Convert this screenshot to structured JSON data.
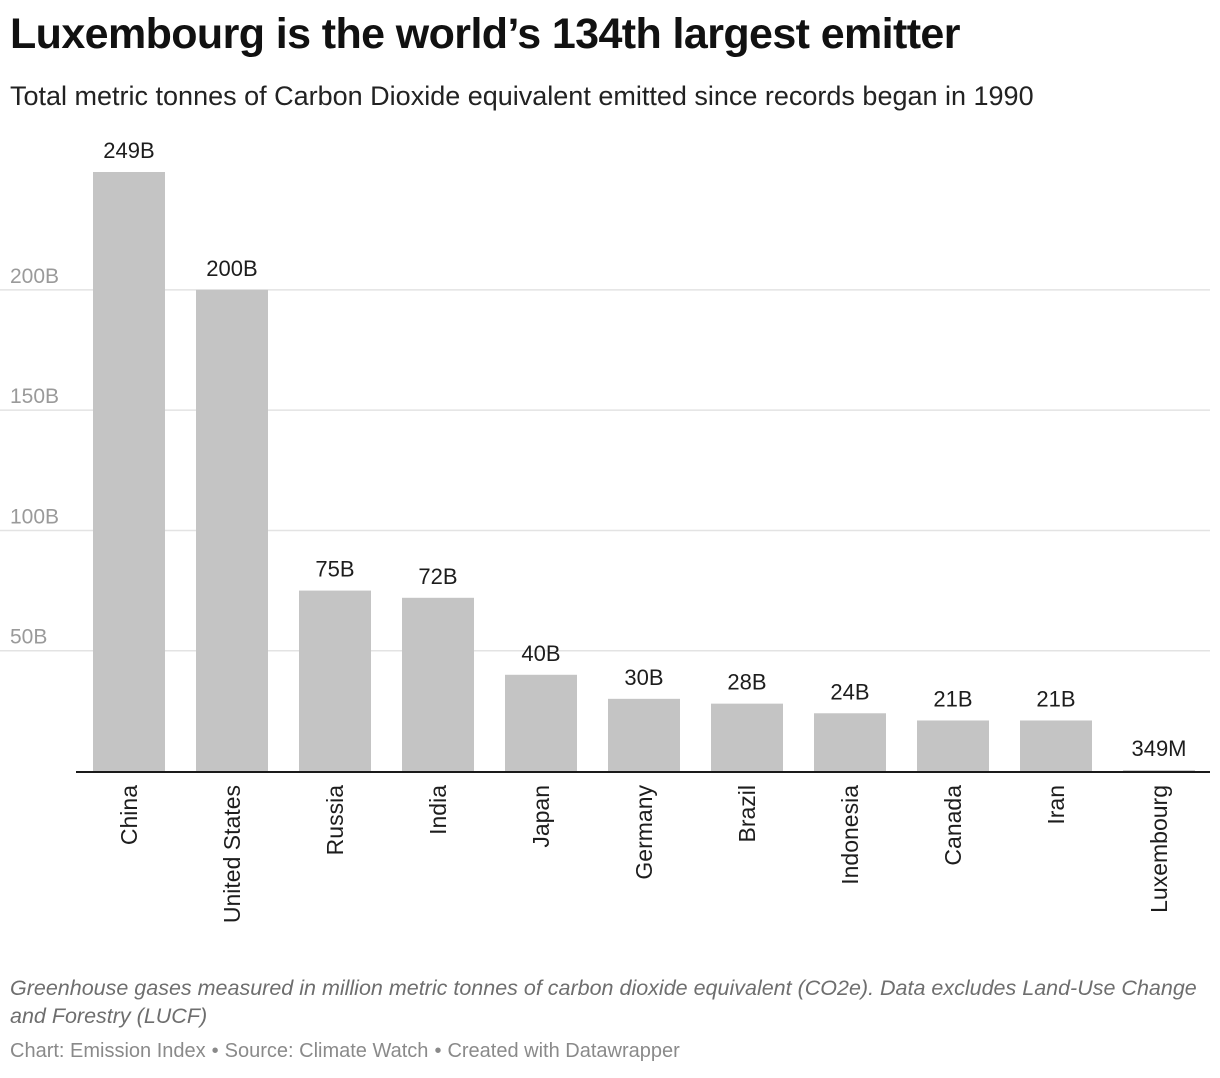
{
  "title": "Luxembourg is the world’s 134th largest emitter",
  "subtitle": "Total metric tonnes of Carbon Dioxide equivalent emitted since records began in 1990",
  "note": "Greenhouse gases measured in million metric tonnes of carbon dioxide equivalent (CO2e). Data excludes Land-Use Change and Forestry (LUCF)",
  "credits": {
    "chart": "Chart: Emission Index",
    "source": "Source: Climate Watch",
    "created": "Created with Datawrapper",
    "separator": "•"
  },
  "colors": {
    "bar": "#c4c4c4",
    "grid": "#e3e3e3",
    "axis": "#1a1a1a",
    "tick_label": "#9a9a9a"
  },
  "chart_data": {
    "type": "bar",
    "categories": [
      "China",
      "United States",
      "Russia",
      "India",
      "Japan",
      "Germany",
      "Brazil",
      "Indonesia",
      "Canada",
      "Iran",
      "Luxembourg"
    ],
    "values": [
      249000,
      200000,
      75000,
      72000,
      40000,
      30000,
      28000,
      24000,
      21000,
      21000,
      349
    ],
    "value_labels": [
      "249B",
      "200B",
      "75B",
      "72B",
      "40B",
      "30B",
      "28B",
      "24B",
      "21B",
      "21B",
      "349M"
    ],
    "y_ticks": [
      50000,
      100000,
      150000,
      200000
    ],
    "y_tick_labels": [
      "50B",
      "100B",
      "150B",
      "200B"
    ],
    "ylim": [
      0,
      249000
    ],
    "grid": true,
    "xlabel": "",
    "ylabel": ""
  }
}
